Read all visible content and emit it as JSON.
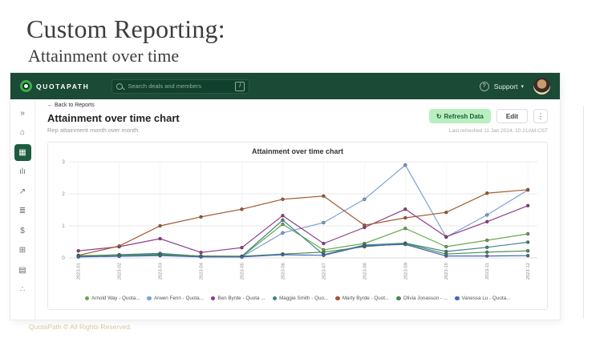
{
  "slide": {
    "title": "Custom Reporting:",
    "subtitle": "Attainment over time",
    "footer": "QuotaPath © All Rights Reserved."
  },
  "app": {
    "header": {
      "brand": "QUOTAPATH",
      "search_placeholder": "Search deals and members",
      "search_shortcut": "/",
      "help_icon": "?",
      "support_label": "Support",
      "support_chevron": "▾",
      "colors": {
        "bar_green": "#1b4a37",
        "accent_green": "#3fae49"
      }
    },
    "sidebar": {
      "items": [
        {
          "name": "expand",
          "glyph": "»",
          "active": false
        },
        {
          "name": "home",
          "glyph": "⌂",
          "active": false
        },
        {
          "name": "reports",
          "glyph": "▦",
          "active": true
        },
        {
          "name": "charts",
          "glyph": "ılı",
          "active": false
        },
        {
          "name": "trends",
          "glyph": "↗",
          "active": false
        },
        {
          "name": "plans",
          "glyph": "≣",
          "active": false
        },
        {
          "name": "payouts",
          "glyph": "$",
          "active": false
        },
        {
          "name": "calculator",
          "glyph": "⊞",
          "active": false
        },
        {
          "name": "ledger",
          "glyph": "▤",
          "active": false
        },
        {
          "name": "integrations",
          "glyph": "∴",
          "active": false
        }
      ]
    },
    "page": {
      "breadcrumb": "← Back to Reports",
      "title": "Attainment over time chart",
      "subtitle": "Rep attainment month over month.",
      "refresh_icon": "↻",
      "refresh_button": "Refresh Data",
      "edit_button": "Edit",
      "kebab_icon": "⋮",
      "last_refreshed": "Last refreshed 11 Jan 2024, 10:21AM CST",
      "active_colors": {
        "refresh_bg": "#b9efc0",
        "refresh_text": "#1d5c35",
        "active_nav": "#1d5c40"
      }
    }
  },
  "chart_data": {
    "type": "line",
    "title": "Attainment over time chart",
    "x": [
      "2023-01",
      "2023-02",
      "2023-03",
      "2023-04",
      "2023-05",
      "2023-06",
      "2023-07",
      "2023-08",
      "2023-09",
      "2023-10",
      "2023-11",
      "2023-12"
    ],
    "xlabel": "",
    "ylabel": "",
    "ylim": [
      0,
      3
    ],
    "yticks": [
      0,
      1,
      2,
      3
    ],
    "grid": true,
    "legend_position": "bottom",
    "series": [
      {
        "name": "Arnold Way - Quota...",
        "color": "#6aa84f",
        "values": [
          0.05,
          0.08,
          0.12,
          0.05,
          0.04,
          1.05,
          0.25,
          0.45,
          0.92,
          0.35,
          0.55,
          0.75
        ]
      },
      {
        "name": "Arwen Fenn - Quota...",
        "color": "#7da0d9",
        "values": [
          0.04,
          0.06,
          0.1,
          0.04,
          0.03,
          0.78,
          1.1,
          1.83,
          2.9,
          0.65,
          1.34,
          2.12
        ]
      },
      {
        "name": "Ben Byrde - Quota ...",
        "color": "#8e3a8a",
        "values": [
          0.22,
          0.35,
          0.6,
          0.17,
          0.32,
          1.32,
          0.45,
          0.95,
          1.52,
          0.66,
          1.13,
          1.63
        ]
      },
      {
        "name": "Maggie Smith - Quo...",
        "color": "#3a8686",
        "values": [
          0.05,
          0.1,
          0.14,
          0.05,
          0.05,
          1.18,
          0.1,
          0.4,
          0.46,
          0.2,
          0.33,
          0.49
        ]
      },
      {
        "name": "Marty Byrde - Quot...",
        "color": "#a3592e",
        "values": [
          0.08,
          0.37,
          1.0,
          1.28,
          1.52,
          1.83,
          1.93,
          1.02,
          1.25,
          1.42,
          2.02,
          2.13
        ]
      },
      {
        "name": "Olivia Jonasson - ...",
        "color": "#4c8a50",
        "values": [
          0.07,
          0.09,
          0.1,
          0.06,
          0.05,
          0.12,
          0.18,
          0.35,
          0.45,
          0.12,
          0.18,
          0.22
        ]
      },
      {
        "name": "Vanessa Lu - Quota...",
        "color": "#4468b8",
        "values": [
          0.03,
          0.05,
          0.07,
          0.03,
          0.03,
          0.1,
          0.08,
          0.38,
          0.42,
          0.06,
          0.06,
          0.07
        ]
      }
    ]
  }
}
